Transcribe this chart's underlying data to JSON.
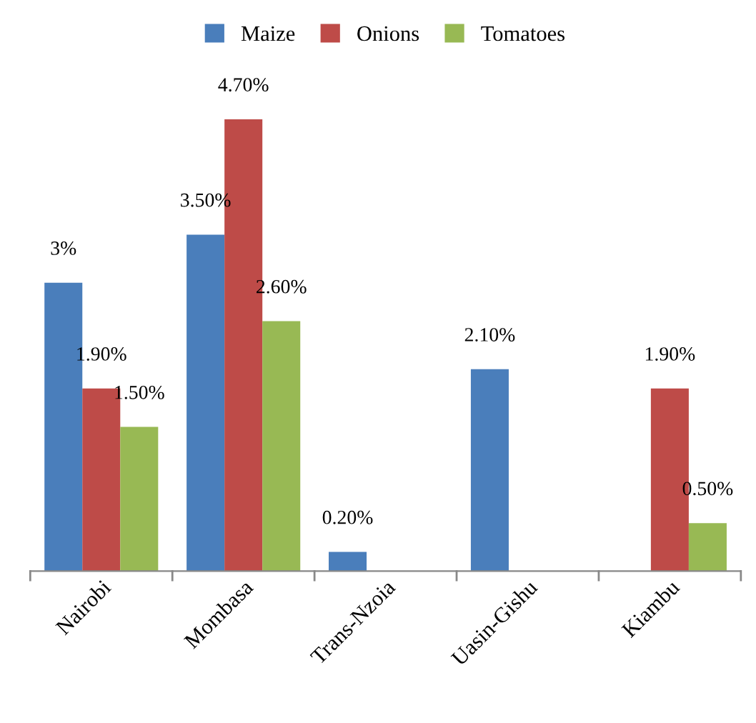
{
  "chart_data": {
    "type": "bar",
    "categories": [
      "Nairobi",
      "Mombasa",
      "Trans-Nzoia",
      "Uasin-Gishu",
      "Kiambu"
    ],
    "series": [
      {
        "name": "Maize",
        "color": "#4a7ebb",
        "values": [
          3,
          3.5,
          0.2,
          2.1,
          null
        ],
        "value_labels": [
          "3%",
          "3.50%",
          "0.20%",
          "2.10%",
          null
        ]
      },
      {
        "name": "Onions",
        "color": "#be4b48",
        "values": [
          1.9,
          4.7,
          null,
          null,
          1.9
        ],
        "value_labels": [
          "1.90%",
          "4.70%",
          null,
          null,
          "1.90%"
        ]
      },
      {
        "name": "Tomatoes",
        "color": "#98b954",
        "values": [
          1.5,
          2.6,
          null,
          null,
          0.5
        ],
        "value_labels": [
          "1.50%",
          "2.60%",
          null,
          null,
          "0.50%"
        ]
      }
    ],
    "legend": "top",
    "grid": false
  }
}
